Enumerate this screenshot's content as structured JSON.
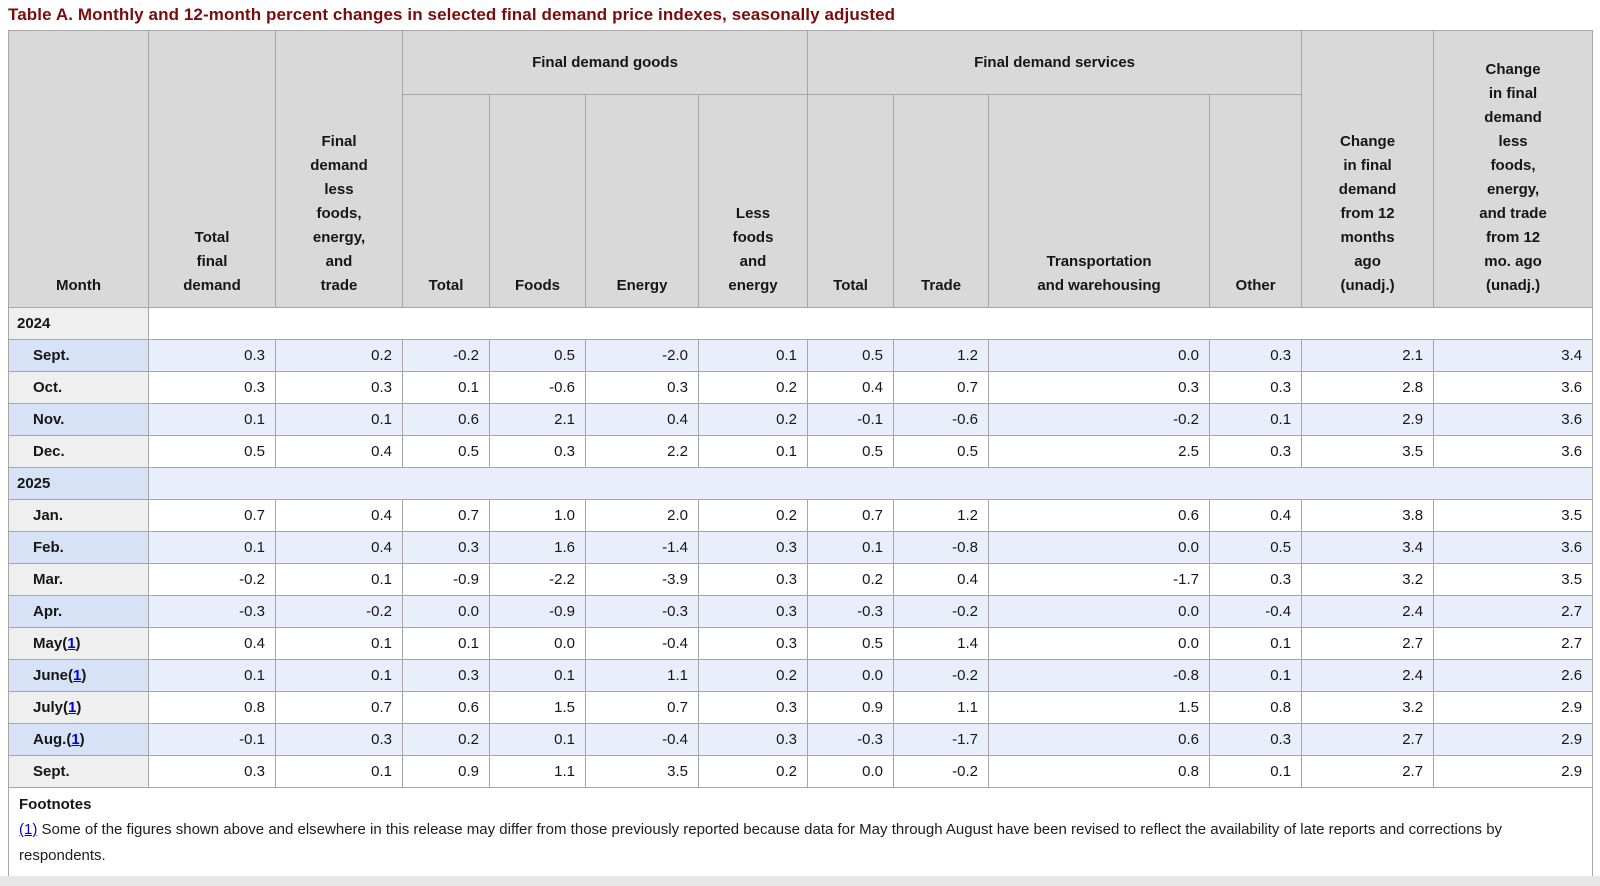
{
  "title": "Table A. Monthly and 12-month percent changes in selected final demand price indexes, seasonally adjusted",
  "colors": {
    "title_maroon": "#7b0c0c",
    "header_gray": "#d9d9d9",
    "row_label_gray": "#efefef",
    "row_label_blue": "#d6e3f7",
    "row_cell_blue": "#e9effa",
    "row_cell_white": "#ffffff",
    "grid_border": "#a6a6a6",
    "link_blue": "#0000ee"
  },
  "table": {
    "groups": {
      "goods": "Final demand goods",
      "services": "Final demand services"
    },
    "columns": {
      "month": "Month",
      "total_final_demand": "Total final demand",
      "fd_less_fet": "Final demand less foods, energy, and trade",
      "goods_total": "Total",
      "goods_foods": "Foods",
      "goods_energy": "Energy",
      "goods_less_foods_energy": "Less foods and energy",
      "services_total": "Total",
      "services_trade": "Trade",
      "services_transportation": "Transportation and warehousing",
      "services_other": "Other",
      "chg_12mo": "Change in final demand from 12 months ago (unadj.)",
      "chg_12mo_less": "Change in final demand less foods, energy, and trade from 12 mo. ago (unadj.)"
    },
    "rows": [
      {
        "type": "year",
        "label": "2024",
        "shade": "plain"
      },
      {
        "type": "month",
        "label": "Sept.",
        "shade": "blue",
        "values": [
          "0.3",
          "0.2",
          "-0.2",
          "0.5",
          "-2.0",
          "0.1",
          "0.5",
          "1.2",
          "0.0",
          "0.3",
          "2.1",
          "3.4"
        ]
      },
      {
        "type": "month",
        "label": "Oct.",
        "shade": "plain",
        "values": [
          "0.3",
          "0.3",
          "0.1",
          "-0.6",
          "0.3",
          "0.2",
          "0.4",
          "0.7",
          "0.3",
          "0.3",
          "2.8",
          "3.6"
        ]
      },
      {
        "type": "month",
        "label": "Nov.",
        "shade": "blue",
        "values": [
          "0.1",
          "0.1",
          "0.6",
          "2.1",
          "0.4",
          "0.2",
          "-0.1",
          "-0.6",
          "-0.2",
          "0.1",
          "2.9",
          "3.6"
        ]
      },
      {
        "type": "month",
        "label": "Dec.",
        "shade": "plain",
        "values": [
          "0.5",
          "0.4",
          "0.5",
          "0.3",
          "2.2",
          "0.1",
          "0.5",
          "0.5",
          "2.5",
          "0.3",
          "3.5",
          "3.6"
        ]
      },
      {
        "type": "year",
        "label": "2025",
        "shade": "blue"
      },
      {
        "type": "month",
        "label": "Jan.",
        "shade": "plain",
        "values": [
          "0.7",
          "0.4",
          "0.7",
          "1.0",
          "2.0",
          "0.2",
          "0.7",
          "1.2",
          "0.6",
          "0.4",
          "3.8",
          "3.5"
        ]
      },
      {
        "type": "month",
        "label": "Feb.",
        "shade": "blue",
        "values": [
          "0.1",
          "0.4",
          "0.3",
          "1.6",
          "-1.4",
          "0.3",
          "0.1",
          "-0.8",
          "0.0",
          "0.5",
          "3.4",
          "3.6"
        ]
      },
      {
        "type": "month",
        "label": "Mar.",
        "shade": "plain",
        "values": [
          "-0.2",
          "0.1",
          "-0.9",
          "-2.2",
          "-3.9",
          "0.3",
          "0.2",
          "0.4",
          "-1.7",
          "0.3",
          "3.2",
          "3.5"
        ]
      },
      {
        "type": "month",
        "label": "Apr.",
        "shade": "blue",
        "values": [
          "-0.3",
          "-0.2",
          "0.0",
          "-0.9",
          "-0.3",
          "0.3",
          "-0.3",
          "-0.2",
          "0.0",
          "-0.4",
          "2.4",
          "2.7"
        ]
      },
      {
        "type": "month",
        "label": "May",
        "shade": "plain",
        "footnote_marker": "1",
        "values": [
          "0.4",
          "0.1",
          "0.1",
          "0.0",
          "-0.4",
          "0.3",
          "0.5",
          "1.4",
          "0.0",
          "0.1",
          "2.7",
          "2.7"
        ]
      },
      {
        "type": "month",
        "label": "June",
        "shade": "blue",
        "footnote_marker": "1",
        "values": [
          "0.1",
          "0.1",
          "0.3",
          "0.1",
          "1.1",
          "0.2",
          "0.0",
          "-0.2",
          "-0.8",
          "0.1",
          "2.4",
          "2.6"
        ]
      },
      {
        "type": "month",
        "label": "July",
        "shade": "plain",
        "footnote_marker": "1",
        "values": [
          "0.8",
          "0.7",
          "0.6",
          "1.5",
          "0.7",
          "0.3",
          "0.9",
          "1.1",
          "1.5",
          "0.8",
          "3.2",
          "2.9"
        ]
      },
      {
        "type": "month",
        "label": "Aug.",
        "shade": "blue",
        "footnote_marker": "1",
        "values": [
          "-0.1",
          "0.3",
          "0.2",
          "0.1",
          "-0.4",
          "0.3",
          "-0.3",
          "-1.7",
          "0.6",
          "0.3",
          "2.7",
          "2.9"
        ]
      },
      {
        "type": "month",
        "label": "Sept.",
        "shade": "plain",
        "values": [
          "0.3",
          "0.1",
          "0.9",
          "1.1",
          "3.5",
          "0.2",
          "0.0",
          "-0.2",
          "0.8",
          "0.1",
          "2.7",
          "2.9"
        ]
      }
    ]
  },
  "footnotes": {
    "heading": "Footnotes",
    "items": [
      {
        "marker": "(1)",
        "text": " Some of the figures shown above and elsewhere in this release may differ from those previously reported because data for May through August have been revised to reflect the availability of late reports and corrections by respondents."
      }
    ]
  }
}
